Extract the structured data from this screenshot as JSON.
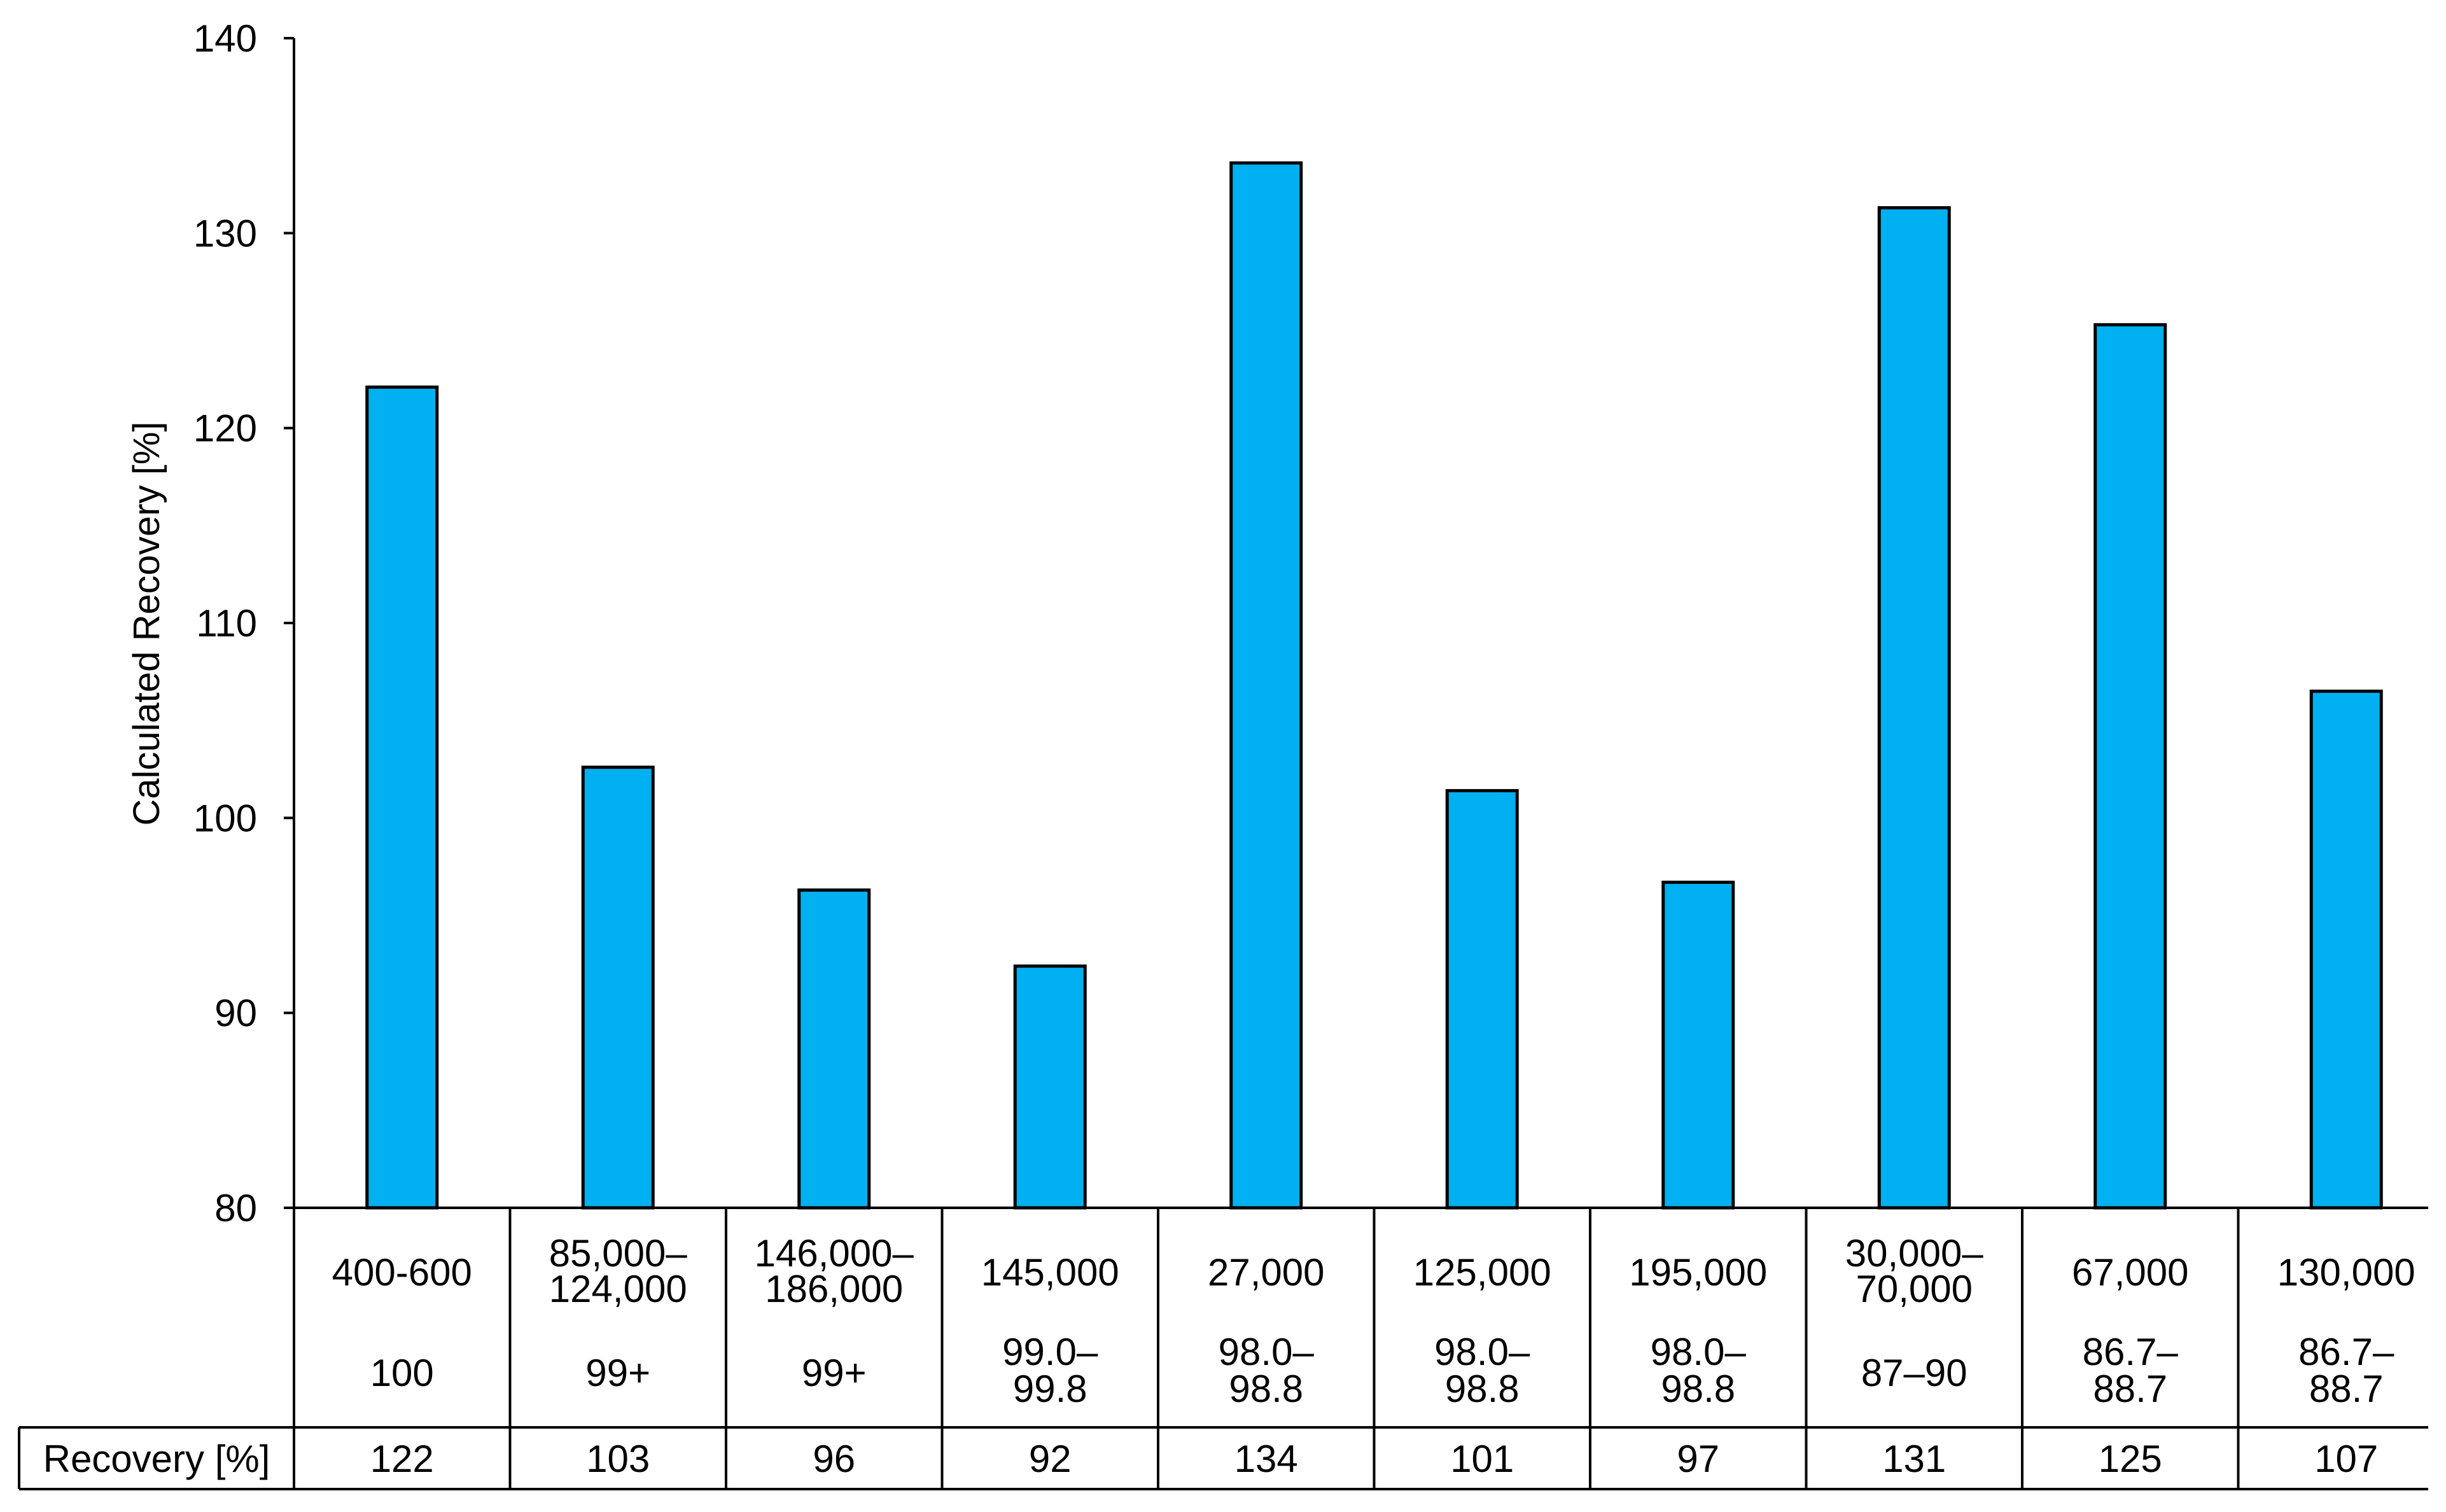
{
  "chart_data": {
    "type": "bar",
    "ylabel": "Calculated Recovery [%]",
    "ylim": [
      80,
      140
    ],
    "yticks": [
      80,
      90,
      100,
      110,
      120,
      130,
      140
    ],
    "grid": false,
    "bar_color": "#00B0F0",
    "categories": [
      {
        "line1": "400-600",
        "line2": "",
        "line3": "100",
        "line4": ""
      },
      {
        "line1": "85,000–",
        "line2": "124,000",
        "line3": "99+",
        "line4": ""
      },
      {
        "line1": "146,000–",
        "line2": "186,000",
        "line3": "99+",
        "line4": ""
      },
      {
        "line1": "145,000",
        "line2": "",
        "line3": "99.0–",
        "line4": "99.8"
      },
      {
        "line1": "27,000",
        "line2": "",
        "line3": "98.0–",
        "line4": "98.8"
      },
      {
        "line1": "125,000",
        "line2": "",
        "line3": "98.0–",
        "line4": "98.8"
      },
      {
        "line1": "195,000",
        "line2": "",
        "line3": "98.0–",
        "line4": "98.8"
      },
      {
        "line1": "30,000–",
        "line2": "70,000",
        "line3": "87–90",
        "line4": ""
      },
      {
        "line1": "67,000",
        "line2": "",
        "line3": "86.7–",
        "line4": "88.7"
      },
      {
        "line1": "130,000",
        "line2": "",
        "line3": "86.7–",
        "line4": "88.7"
      }
    ],
    "values": [
      122.1,
      102.6,
      96.3,
      92.4,
      133.6,
      101.4,
      96.7,
      131.3,
      125.3,
      106.5
    ],
    "table": {
      "row_label": "Recovery [%]",
      "row_values": [
        "122",
        "103",
        "96",
        "92",
        "134",
        "101",
        "97",
        "131",
        "125",
        "107"
      ]
    }
  }
}
